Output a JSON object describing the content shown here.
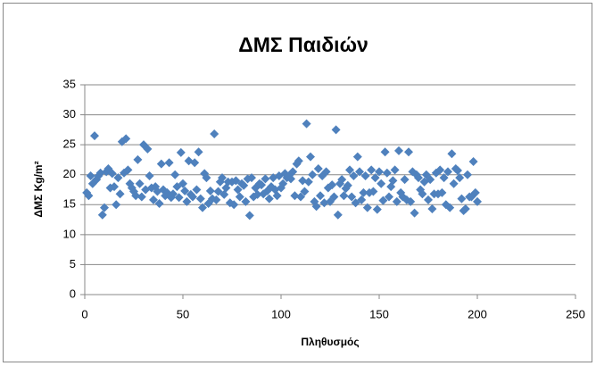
{
  "chart_data": {
    "type": "scatter",
    "title": "ΔΜΣ Παιδιών",
    "x_label": "Πληθυσμός",
    "y_label": "ΔΜΣ Kg/m²",
    "series": [
      {
        "name": "ΔΜΣ",
        "color": "#4f81bd",
        "x": [
          1,
          2,
          3,
          4,
          5,
          6,
          7,
          8,
          9,
          10,
          11,
          12,
          13,
          14,
          15,
          16,
          17,
          18,
          19,
          20,
          21,
          22,
          23,
          24,
          25,
          26,
          27,
          28,
          29,
          30,
          31,
          32,
          33,
          34,
          35,
          36,
          37,
          38,
          39,
          40,
          41,
          42,
          43,
          44,
          45,
          46,
          47,
          48,
          49,
          50,
          51,
          52,
          53,
          54,
          55,
          56,
          57,
          58,
          59,
          60,
          61,
          62,
          63,
          64,
          65,
          66,
          67,
          68,
          69,
          70,
          71,
          72,
          73,
          74,
          75,
          76,
          77,
          78,
          79,
          80,
          81,
          82,
          83,
          84,
          85,
          86,
          87,
          88,
          89,
          90,
          91,
          92,
          93,
          94,
          95,
          96,
          97,
          98,
          99,
          100,
          101,
          102,
          103,
          104,
          105,
          106,
          107,
          108,
          109,
          110,
          111,
          112,
          113,
          114,
          115,
          116,
          117,
          118,
          119,
          120,
          121,
          122,
          123,
          124,
          125,
          126,
          127,
          128,
          129,
          130,
          131,
          132,
          133,
          134,
          135,
          136,
          137,
          138,
          139,
          140,
          141,
          142,
          143,
          144,
          145,
          146,
          147,
          148,
          149,
          150,
          151,
          152,
          153,
          154,
          155,
          156,
          157,
          158,
          159,
          160,
          161,
          162,
          163,
          164,
          165,
          166,
          167,
          168,
          169,
          170,
          171,
          172,
          173,
          174,
          175,
          176,
          177,
          178,
          179,
          180,
          181,
          182,
          183,
          184,
          185,
          186,
          187,
          188,
          189,
          190,
          191,
          192,
          193,
          194,
          195,
          196,
          197,
          198,
          199,
          200
        ],
        "values": [
          17,
          16.5,
          19.8,
          18.5,
          26.5,
          19.2,
          19.8,
          20.3,
          13.3,
          14.5,
          20.5,
          21,
          17.8,
          20.2,
          18,
          15,
          19.5,
          16.8,
          25.5,
          20.3,
          26,
          20.8,
          18.5,
          17.8,
          17.2,
          16.5,
          22.5,
          18.5,
          16.3,
          25,
          17.5,
          24.3,
          19.8,
          17.8,
          15.8,
          18,
          17.2,
          15.2,
          21.8,
          17.5,
          16.5,
          17,
          22,
          16.2,
          16.8,
          20,
          18,
          16.2,
          23.7,
          18.5,
          17.3,
          15.5,
          22.3,
          16.7,
          16.3,
          22,
          17.5,
          23.8,
          16,
          14.5,
          20.2,
          19.5,
          15.2,
          17.3,
          16,
          26.8,
          15.8,
          17.2,
          18.8,
          19.5,
          16.7,
          17.8,
          18.8,
          15.3,
          18.8,
          15,
          19,
          17.5,
          16.3,
          18.5,
          18.2,
          15.5,
          19.3,
          13.2,
          19.5,
          16.3,
          17.8,
          16.7,
          18.5,
          18.3,
          16.8,
          19.3,
          17.3,
          16,
          18,
          19.5,
          17.5,
          16.5,
          19.8,
          17.8,
          18.5,
          20.2,
          19.5,
          19.8,
          19.3,
          20.5,
          16.5,
          21.8,
          22.3,
          16.3,
          19,
          17.2,
          28.5,
          18.8,
          23,
          20,
          15.5,
          14.7,
          21,
          16.5,
          19.8,
          15.3,
          20.5,
          17.8,
          15.5,
          18.3,
          16.3,
          27.5,
          13.3,
          18.5,
          19.2,
          16.5,
          17.7,
          18.2,
          20.8,
          16.3,
          19.8,
          15.3,
          23,
          20.5,
          15.8,
          17,
          19.8,
          14.5,
          17,
          20.8,
          17.2,
          19.5,
          14.2,
          20.5,
          18.5,
          15.7,
          23.8,
          20.3,
          16.3,
          18,
          19,
          20.8,
          15.5,
          24,
          17,
          16.3,
          19.2,
          15.8,
          23.8,
          15.5,
          20.5,
          13.6,
          20,
          19.5,
          17.5,
          16.8,
          18.8,
          20,
          15.8,
          19.2,
          14.3,
          16.8,
          20.3,
          16.8,
          20.8,
          17,
          19.5,
          15,
          20.5,
          14.5,
          23.5,
          18.5,
          21,
          20.7,
          19.5,
          16,
          14,
          14.3,
          20,
          16.3,
          16.3,
          22.2,
          17,
          15.5
        ]
      }
    ],
    "xlim": [
      0,
      250
    ],
    "xticks": [
      0,
      50,
      100,
      150,
      200,
      250
    ],
    "ylim": [
      0,
      35
    ],
    "yticks": [
      0,
      5,
      10,
      15,
      20,
      25,
      30,
      35
    ],
    "grid": true
  }
}
